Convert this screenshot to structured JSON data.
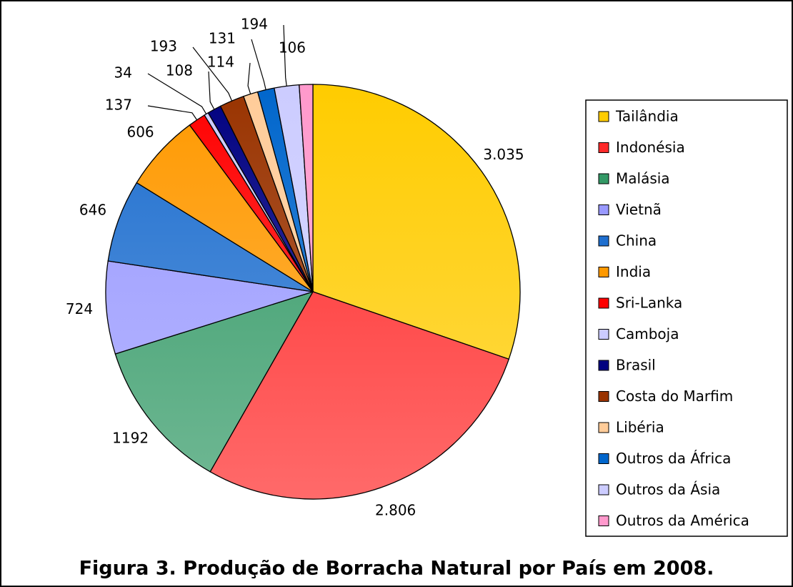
{
  "chart_data": {
    "type": "pie",
    "title": "Figura 3. Produção de Borracha Natural por País em 2008.",
    "categories": [
      "Tailândia",
      "Indonésia",
      "Malásia",
      "Vietnã",
      "China",
      "India",
      "Sri-Lanka",
      "Camboja",
      "Brasil",
      "Costa do Marfim",
      "Libéria",
      "Outros da África",
      "Outros da Ásia",
      "Outros da América"
    ],
    "values": [
      3035,
      2806,
      1192,
      724,
      646,
      606,
      137,
      34,
      108,
      193,
      114,
      131,
      194,
      106
    ],
    "value_labels": [
      "3.035",
      "2.806",
      "1192",
      "724",
      "646",
      "606",
      "137",
      "34",
      "108",
      "193",
      "114",
      "131",
      "194",
      "106"
    ],
    "colors": [
      "#ffcc00",
      "#ff2a2a",
      "#339966",
      "#9999ff",
      "#1f6fcf",
      "#ff9900",
      "#ff0000",
      "#ccccff",
      "#000080",
      "#993300",
      "#ffcc99",
      "#0066cc",
      "#ccccff",
      "#ff99cc"
    ],
    "legend": "right"
  }
}
